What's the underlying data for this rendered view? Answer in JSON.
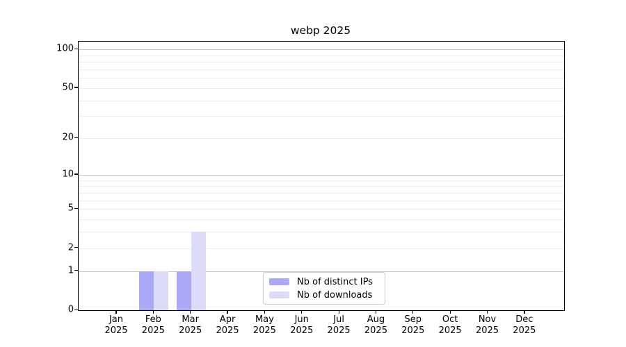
{
  "chart_data": {
    "type": "bar",
    "title": "webp 2025",
    "categories": [
      "Jan",
      "Feb",
      "Mar",
      "Apr",
      "May",
      "Jun",
      "Jul",
      "Aug",
      "Sep",
      "Oct",
      "Nov",
      "Dec"
    ],
    "category_year": "2025",
    "series": [
      {
        "name": "Nb of distinct IPs",
        "color": "#a9a9f7",
        "values": [
          0,
          1,
          1,
          0,
          0,
          0,
          0,
          0,
          0,
          0,
          0,
          0
        ]
      },
      {
        "name": "Nb of downloads",
        "color": "#dcdcf9",
        "values": [
          0,
          1,
          3,
          0,
          0,
          0,
          0,
          0,
          0,
          0,
          0,
          0
        ]
      }
    ],
    "y_axis": {
      "scale": "log1p",
      "ylim": [
        0,
        115
      ],
      "tick_labels": [
        "0",
        "1",
        "2",
        "5",
        "10",
        "20",
        "50",
        "100"
      ],
      "tick_values": [
        0,
        1,
        2,
        5,
        10,
        20,
        50,
        100
      ],
      "major_gridlines": [
        1,
        10,
        100
      ],
      "minor_gridlines": [
        2,
        3,
        4,
        5,
        6,
        7,
        8,
        9,
        20,
        30,
        40,
        50,
        60,
        70,
        80,
        90
      ]
    },
    "legend": {
      "position": "lower center"
    },
    "colors": {
      "grid_major": "#c6c6c6",
      "grid_minor": "#ebebeb",
      "spine": "#000000",
      "background": "#ffffff"
    }
  }
}
